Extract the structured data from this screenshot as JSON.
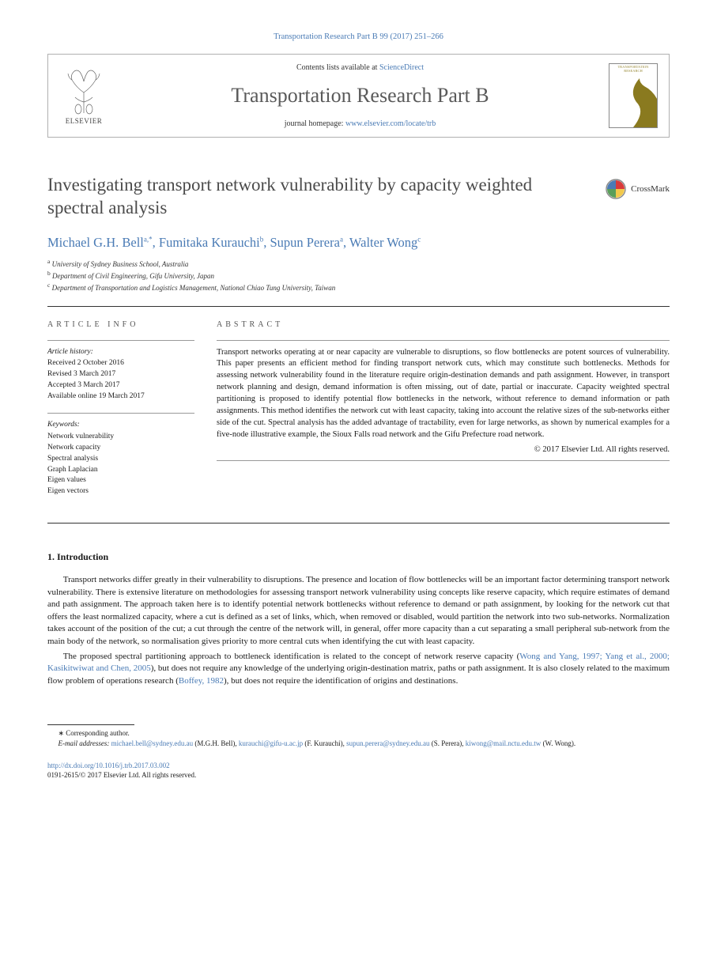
{
  "citation": "Transportation Research Part B 99 (2017) 251–266",
  "masthead": {
    "contents_prefix": "Contents lists available at ",
    "contents_link": "ScienceDirect",
    "journal": "Transportation Research Part B",
    "homepage_prefix": "journal homepage: ",
    "homepage_link": "www.elsevier.com/locate/trb",
    "elsevier_word": "ELSEVIER",
    "cover_text": "TRANSPORTATION RESEARCH"
  },
  "crossmark_label": "CrossMark",
  "title": "Investigating transport network vulnerability by capacity weighted spectral analysis",
  "authors": [
    {
      "name": "Michael G.H. Bell",
      "mark": "a,*"
    },
    {
      "name": "Fumitaka Kurauchi",
      "mark": "b"
    },
    {
      "name": "Supun Perera",
      "mark": "a"
    },
    {
      "name": "Walter Wong",
      "mark": "c"
    }
  ],
  "affiliations": [
    {
      "mark": "a",
      "text": "University of Sydney Business School, Australia"
    },
    {
      "mark": "b",
      "text": "Department of Civil Engineering, Gifu University, Japan"
    },
    {
      "mark": "c",
      "text": "Department of Transportation and Logistics Management, National Chiao Tung University, Taiwan"
    }
  ],
  "info": {
    "head": "ARTICLE INFO",
    "history_label": "Article history:",
    "history": [
      "Received 2 October 2016",
      "Revised 3 March 2017",
      "Accepted 3 March 2017",
      "Available online 19 March 2017"
    ],
    "keywords_label": "Keywords:",
    "keywords": [
      "Network vulnerability",
      "Network capacity",
      "Spectral analysis",
      "Graph Laplacian",
      "Eigen values",
      "Eigen vectors"
    ]
  },
  "abstract": {
    "head": "ABSTRACT",
    "text": "Transport networks operating at or near capacity are vulnerable to disruptions, so flow bottlenecks are potent sources of vulnerability. This paper presents an efficient method for finding transport network cuts, which may constitute such bottlenecks. Methods for assessing network vulnerability found in the literature require origin-destination demands and path assignment. However, in transport network planning and design, demand information is often missing, out of date, partial or inaccurate. Capacity weighted spectral partitioning is proposed to identify potential flow bottlenecks in the network, without reference to demand information or path assignments. This method identifies the network cut with least capacity, taking into account the relative sizes of the sub-networks either side of the cut. Spectral analysis has the added advantage of tractability, even for large networks, as shown by numerical examples for a five-node illustrative example, the Sioux Falls road network and the Gifu Prefecture road network.",
    "copyright": "© 2017 Elsevier Ltd. All rights reserved."
  },
  "section1": {
    "heading": "1. Introduction",
    "p1": "Transport networks differ greatly in their vulnerability to disruptions. The presence and location of flow bottlenecks will be an important factor determining transport network vulnerability. There is extensive literature on methodologies for assessing transport network vulnerability using concepts like reserve capacity, which require estimates of demand and path assignment. The approach taken here is to identify potential network bottlenecks without reference to demand or path assignment, by looking for the network cut that offers the least normalized capacity, where a cut is defined as a set of links, which, when removed or disabled, would partition the network into two sub-networks. Normalization takes account of the position of the cut; a cut through the centre of the network will, in general, offer more capacity than a cut separating a small peripheral sub-network from the main body of the network, so normalisation gives priority to more central cuts when identifying the cut with least capacity.",
    "p2a": "The proposed spectral partitioning approach to bottleneck identification is related to the concept of network reserve capacity (",
    "p2ref1": "Wong and Yang, 1997; Yang et al., 2000; Kasikitwiwat and Chen, 2005",
    "p2b": "), but does not require any knowledge of the underlying origin-destination matrix, paths or path assignment. It is also closely related to the maximum flow problem of operations research (",
    "p2ref2": "Boffey, 1982",
    "p2c": "), but does not require the identification of origins and destinations."
  },
  "footnotes": {
    "corresponding": "Corresponding author.",
    "email_label": "E-mail addresses:",
    "emails": [
      {
        "addr": "michael.bell@sydney.edu.au",
        "who": "(M.G.H. Bell)"
      },
      {
        "addr": "kurauchi@gifu-u.ac.jp",
        "who": "(F. Kurauchi)"
      },
      {
        "addr": "supun.perera@sydney.edu.au",
        "who": "(S. Perera)"
      },
      {
        "addr": "kiwong@mail.nctu.edu.tw",
        "who": "(W. Wong)."
      }
    ]
  },
  "doi": {
    "link": "http://dx.doi.org/10.1016/j.trb.2017.03.002",
    "issn_line": "0191-2615/© 2017 Elsevier Ltd. All rights reserved."
  },
  "colors": {
    "link": "#4a7bb5",
    "title": "#4b4b4b",
    "cover_curve": "#8a7a1f"
  }
}
